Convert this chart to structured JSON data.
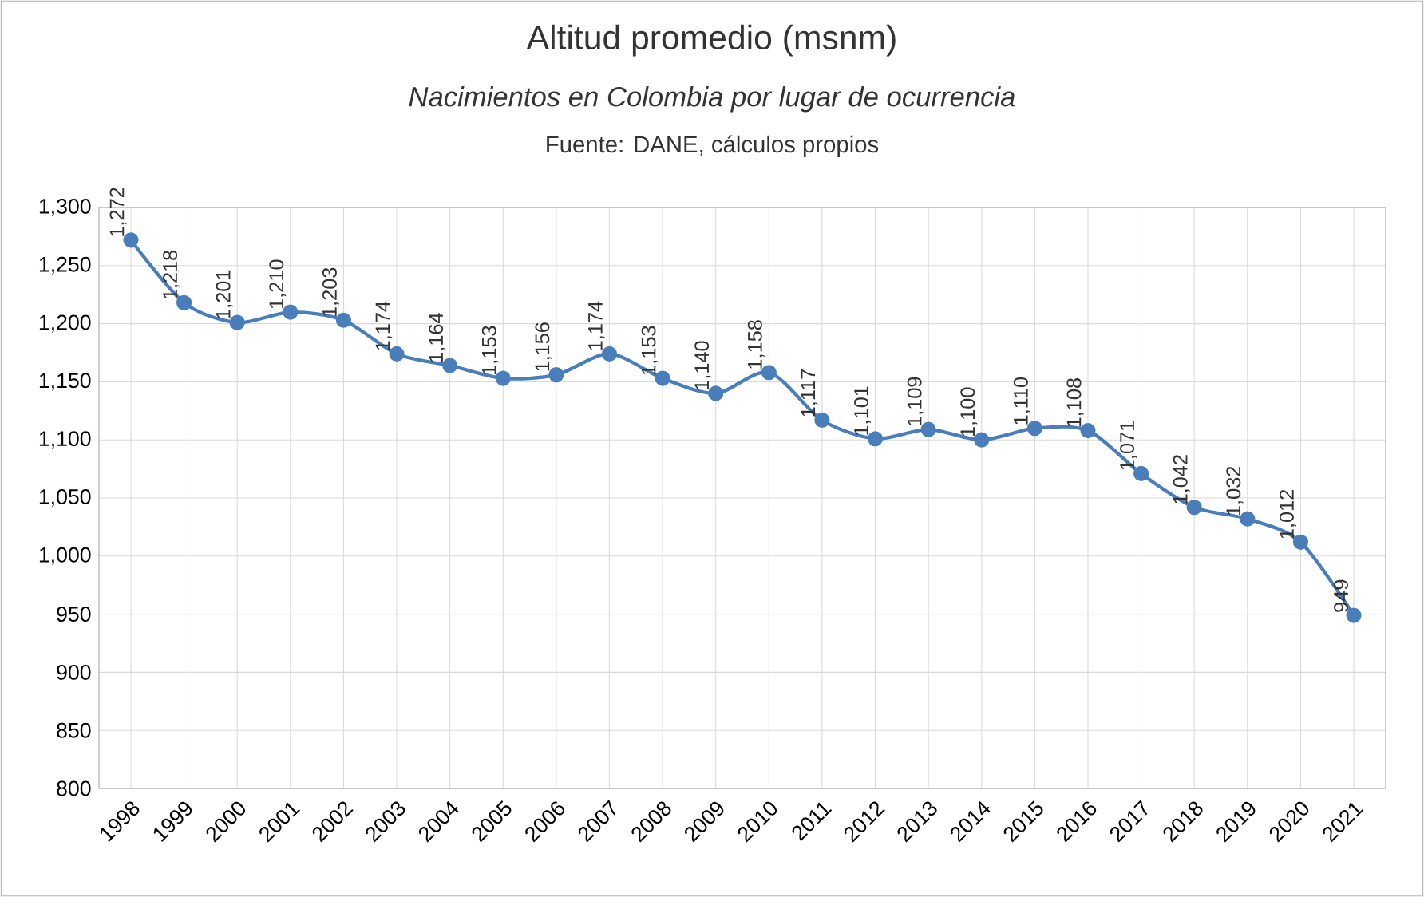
{
  "chart_data": {
    "type": "line",
    "title": "Altitud promedio (msnm)",
    "subtitle": "Nacimientos en Colombia por lugar de ocurrencia",
    "annotations": [
      "Fuente: DANE, cálculos propios"
    ],
    "categories": [
      "1998",
      "1999",
      "2000",
      "2001",
      "2002",
      "2003",
      "2004",
      "2005",
      "2006",
      "2007",
      "2008",
      "2009",
      "2010",
      "2011",
      "2012",
      "2013",
      "2014",
      "2015",
      "2016",
      "2017",
      "2018",
      "2019",
      "2020",
      "2021"
    ],
    "series": [
      {
        "color": "#4a7ebb",
        "values": [
          1272,
          1218,
          1201,
          1210,
          1203,
          1174,
          1164,
          1153,
          1156,
          1174,
          1153,
          1140,
          1158,
          1117,
          1101,
          1109,
          1100,
          1110,
          1108,
          1071,
          1042,
          1032,
          1012,
          949
        ],
        "value_labels": [
          "1,272",
          "1,218",
          "1,201",
          "1,210",
          "1,203",
          "1,174",
          "1,164",
          "1,153",
          "1,156",
          "1,174",
          "1,153",
          "1,140",
          "1,158",
          "1,117",
          "1,101",
          "1,109",
          "1,100",
          "1,110",
          "1,108",
          "1,071",
          "1,042",
          "1,032",
          "1,012",
          "949"
        ]
      }
    ],
    "ylim": [
      800,
      1300
    ],
    "yticks": [
      800,
      850,
      900,
      950,
      {
        "value": 1000,
        "label": "1,000"
      },
      {
        "value": 1050,
        "label": "1,050"
      },
      {
        "value": 1100,
        "label": "1,100"
      },
      {
        "value": 1150,
        "label": "1,150"
      },
      {
        "value": 1200,
        "label": "1,200"
      },
      {
        "value": 1250,
        "label": "1,250"
      },
      {
        "value": 1300,
        "label": "1,300"
      }
    ],
    "grid": true,
    "marker": "circle",
    "line_style": "solid"
  }
}
